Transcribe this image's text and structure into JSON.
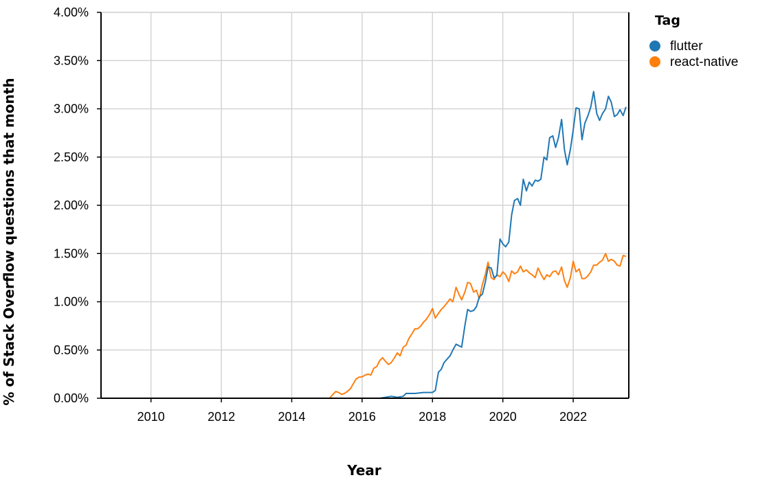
{
  "chart_data": {
    "type": "line",
    "xlabel": "Year",
    "ylabel": "% of Stack Overflow questions that month",
    "x_ticks": [
      "2010",
      "2012",
      "2014",
      "2016",
      "2018",
      "2020",
      "2022"
    ],
    "y_ticks": [
      "0.00%",
      "0.50%",
      "1.00%",
      "1.50%",
      "2.00%",
      "2.50%",
      "3.00%",
      "3.50%",
      "4.00%"
    ],
    "xlim": [
      2008.58,
      2023.58
    ],
    "ylim": [
      0,
      4
    ],
    "grid": true,
    "legend": {
      "title": "Tag",
      "position": "right"
    },
    "colors": {
      "flutter": "#1f77b4",
      "react-native": "#ff7f0e"
    },
    "series": [
      {
        "name": "flutter",
        "points": [
          [
            2008.58,
            0
          ],
          [
            2015.0,
            0
          ],
          [
            2016.5,
            0
          ],
          [
            2016.83,
            0.02
          ],
          [
            2017.0,
            0.01
          ],
          [
            2017.17,
            0.02
          ],
          [
            2017.25,
            0.05
          ],
          [
            2017.5,
            0.05
          ],
          [
            2017.75,
            0.06
          ],
          [
            2018.0,
            0.06
          ],
          [
            2018.08,
            0.08
          ],
          [
            2018.17,
            0.27
          ],
          [
            2018.25,
            0.3
          ],
          [
            2018.33,
            0.37
          ],
          [
            2018.5,
            0.44
          ],
          [
            2018.58,
            0.5
          ],
          [
            2018.67,
            0.56
          ],
          [
            2018.83,
            0.53
          ],
          [
            2018.92,
            0.75
          ],
          [
            2019.0,
            0.92
          ],
          [
            2019.08,
            0.9
          ],
          [
            2019.17,
            0.91
          ],
          [
            2019.25,
            0.95
          ],
          [
            2019.33,
            1.05
          ],
          [
            2019.42,
            1.08
          ],
          [
            2019.5,
            1.2
          ],
          [
            2019.58,
            1.36
          ],
          [
            2019.67,
            1.35
          ],
          [
            2019.75,
            1.25
          ],
          [
            2019.83,
            1.27
          ],
          [
            2019.92,
            1.65
          ],
          [
            2020.0,
            1.6
          ],
          [
            2020.08,
            1.57
          ],
          [
            2020.17,
            1.62
          ],
          [
            2020.25,
            1.9
          ],
          [
            2020.33,
            2.05
          ],
          [
            2020.42,
            2.07
          ],
          [
            2020.5,
            2.0
          ],
          [
            2020.58,
            2.27
          ],
          [
            2020.67,
            2.15
          ],
          [
            2020.75,
            2.24
          ],
          [
            2020.83,
            2.2
          ],
          [
            2020.92,
            2.26
          ],
          [
            2021.0,
            2.25
          ],
          [
            2021.08,
            2.27
          ],
          [
            2021.17,
            2.5
          ],
          [
            2021.25,
            2.47
          ],
          [
            2021.33,
            2.7
          ],
          [
            2021.42,
            2.72
          ],
          [
            2021.5,
            2.6
          ],
          [
            2021.58,
            2.7
          ],
          [
            2021.67,
            2.89
          ],
          [
            2021.75,
            2.58
          ],
          [
            2021.83,
            2.42
          ],
          [
            2021.92,
            2.58
          ],
          [
            2022.0,
            2.78
          ],
          [
            2022.08,
            3.01
          ],
          [
            2022.17,
            3.0
          ],
          [
            2022.25,
            2.68
          ],
          [
            2022.33,
            2.85
          ],
          [
            2022.42,
            2.93
          ],
          [
            2022.5,
            3.02
          ],
          [
            2022.58,
            3.18
          ],
          [
            2022.67,
            2.95
          ],
          [
            2022.75,
            2.88
          ],
          [
            2022.83,
            2.95
          ],
          [
            2022.92,
            3.0
          ],
          [
            2023.0,
            3.13
          ],
          [
            2023.08,
            3.07
          ],
          [
            2023.17,
            2.92
          ],
          [
            2023.25,
            2.94
          ],
          [
            2023.33,
            2.99
          ],
          [
            2023.42,
            2.93
          ],
          [
            2023.5,
            3.02
          ]
        ]
      },
      {
        "name": "react-native",
        "points": [
          [
            2008.58,
            0
          ],
          [
            2015.08,
            0
          ],
          [
            2015.17,
            0.04
          ],
          [
            2015.25,
            0.07
          ],
          [
            2015.33,
            0.06
          ],
          [
            2015.42,
            0.04
          ],
          [
            2015.5,
            0.05
          ],
          [
            2015.58,
            0.07
          ],
          [
            2015.67,
            0.1
          ],
          [
            2015.75,
            0.15
          ],
          [
            2015.83,
            0.2
          ],
          [
            2015.92,
            0.22
          ],
          [
            2016.0,
            0.22
          ],
          [
            2016.08,
            0.24
          ],
          [
            2016.17,
            0.25
          ],
          [
            2016.25,
            0.24
          ],
          [
            2016.33,
            0.31
          ],
          [
            2016.42,
            0.33
          ],
          [
            2016.5,
            0.39
          ],
          [
            2016.58,
            0.42
          ],
          [
            2016.67,
            0.38
          ],
          [
            2016.75,
            0.35
          ],
          [
            2016.83,
            0.37
          ],
          [
            2016.92,
            0.42
          ],
          [
            2017.0,
            0.47
          ],
          [
            2017.08,
            0.44
          ],
          [
            2017.17,
            0.53
          ],
          [
            2017.25,
            0.55
          ],
          [
            2017.33,
            0.62
          ],
          [
            2017.42,
            0.67
          ],
          [
            2017.5,
            0.72
          ],
          [
            2017.58,
            0.72
          ],
          [
            2017.67,
            0.75
          ],
          [
            2017.75,
            0.79
          ],
          [
            2017.83,
            0.82
          ],
          [
            2017.92,
            0.87
          ],
          [
            2018.0,
            0.93
          ],
          [
            2018.08,
            0.83
          ],
          [
            2018.17,
            0.88
          ],
          [
            2018.25,
            0.92
          ],
          [
            2018.33,
            0.95
          ],
          [
            2018.42,
            0.99
          ],
          [
            2018.5,
            1.03
          ],
          [
            2018.58,
            1.0
          ],
          [
            2018.67,
            1.15
          ],
          [
            2018.75,
            1.08
          ],
          [
            2018.83,
            1.02
          ],
          [
            2018.92,
            1.1
          ],
          [
            2019.0,
            1.2
          ],
          [
            2019.08,
            1.19
          ],
          [
            2019.17,
            1.1
          ],
          [
            2019.25,
            1.12
          ],
          [
            2019.33,
            1.03
          ],
          [
            2019.42,
            1.18
          ],
          [
            2019.5,
            1.28
          ],
          [
            2019.58,
            1.41
          ],
          [
            2019.67,
            1.25
          ],
          [
            2019.75,
            1.23
          ],
          [
            2019.83,
            1.28
          ],
          [
            2019.92,
            1.26
          ],
          [
            2020.0,
            1.31
          ],
          [
            2020.08,
            1.28
          ],
          [
            2020.17,
            1.21
          ],
          [
            2020.25,
            1.32
          ],
          [
            2020.33,
            1.29
          ],
          [
            2020.42,
            1.31
          ],
          [
            2020.5,
            1.37
          ],
          [
            2020.58,
            1.31
          ],
          [
            2020.67,
            1.33
          ],
          [
            2020.75,
            1.3
          ],
          [
            2020.83,
            1.28
          ],
          [
            2020.92,
            1.25
          ],
          [
            2021.0,
            1.35
          ],
          [
            2021.08,
            1.29
          ],
          [
            2021.17,
            1.23
          ],
          [
            2021.25,
            1.28
          ],
          [
            2021.33,
            1.26
          ],
          [
            2021.42,
            1.31
          ],
          [
            2021.5,
            1.32
          ],
          [
            2021.58,
            1.28
          ],
          [
            2021.67,
            1.36
          ],
          [
            2021.75,
            1.22
          ],
          [
            2021.83,
            1.15
          ],
          [
            2021.92,
            1.25
          ],
          [
            2022.0,
            1.42
          ],
          [
            2022.08,
            1.31
          ],
          [
            2022.17,
            1.34
          ],
          [
            2022.25,
            1.24
          ],
          [
            2022.33,
            1.24
          ],
          [
            2022.42,
            1.27
          ],
          [
            2022.5,
            1.31
          ],
          [
            2022.58,
            1.38
          ],
          [
            2022.67,
            1.38
          ],
          [
            2022.75,
            1.41
          ],
          [
            2022.83,
            1.43
          ],
          [
            2022.92,
            1.5
          ],
          [
            2023.0,
            1.42
          ],
          [
            2023.08,
            1.44
          ],
          [
            2023.17,
            1.42
          ],
          [
            2023.25,
            1.38
          ],
          [
            2023.33,
            1.37
          ],
          [
            2023.42,
            1.48
          ],
          [
            2023.5,
            1.47
          ]
        ]
      }
    ]
  }
}
